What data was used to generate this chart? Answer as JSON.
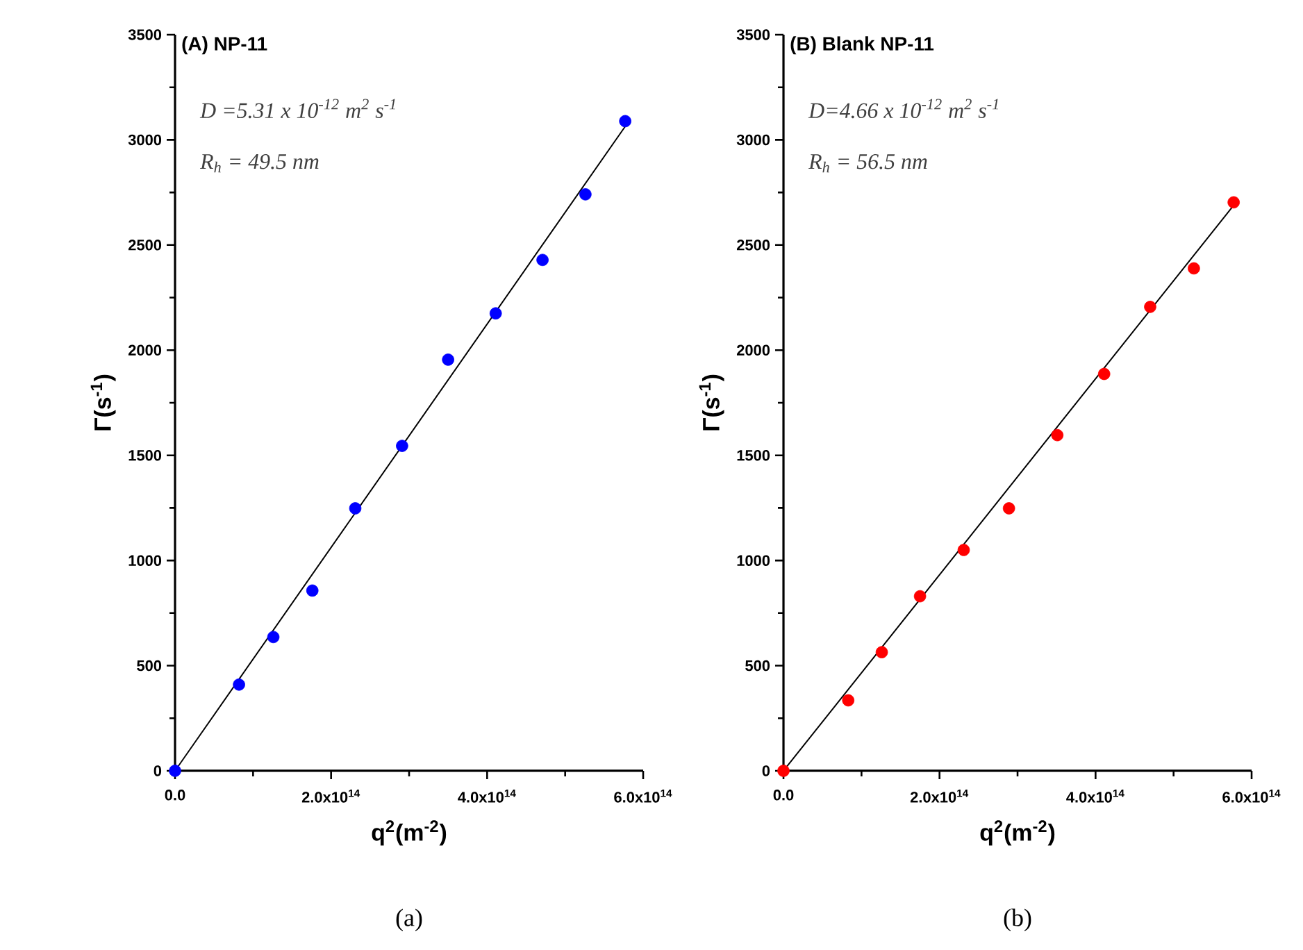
{
  "chart_data": [
    {
      "type": "scatter",
      "title": "(A) NP-11",
      "xlabel": "q$^{2}$(m$^{-2}$)",
      "ylabel": "Γ(s$^{-1}$)",
      "xlim": [
        0,
        600000000000000.0
      ],
      "ylim": [
        0,
        3500
      ],
      "xticks": [
        {
          "value": 0,
          "label": "0.0"
        },
        {
          "value": 200000000000000.0,
          "label": "2.0x10$^{14}$"
        },
        {
          "value": 400000000000000.0,
          "label": "4.0x10$^{14}$"
        },
        {
          "value": 600000000000000.0,
          "label": "6.0x10$^{14}$"
        }
      ],
      "yticks": [
        0,
        500,
        1000,
        1500,
        2000,
        2500,
        3000,
        3500
      ],
      "annotations": [
        "D =5.31 x 10$^{-12}$ m$^{2}$ s$^{-1}$",
        "R$_{h}$ = 49.5 nm",
        "(a)"
      ],
      "series": [
        {
          "marker": "circle",
          "color": "#0000ff",
          "x": [
            0,
            82000000000000.0,
            126000000000000.0,
            176000000000000.0,
            231000000000000.0,
            291000000000000.0,
            350000000000000.0,
            411000000000000.0,
            471000000000000.0,
            526000000000000.0,
            577000000000000.0
          ],
          "values": [
            0,
            410,
            636,
            857,
            1248,
            1545,
            1955,
            2175,
            2429,
            2741,
            3089
          ]
        },
        {
          "type": "line",
          "color": "#000000",
          "x": [
            0,
            577000000000000.0
          ],
          "values": [
            0,
            3064
          ]
        }
      ]
    },
    {
      "type": "scatter",
      "title": "(B) Blank NP-11",
      "xlabel": "q$^{2}$(m$^{-2}$)",
      "ylabel": "Γ(s$^{-1}$)",
      "xlim": [
        0,
        600000000000000.0
      ],
      "ylim": [
        0,
        3500
      ],
      "xticks": [
        {
          "value": 0,
          "label": "0.0"
        },
        {
          "value": 200000000000000.0,
          "label": "2.0x10$^{14}$"
        },
        {
          "value": 400000000000000.0,
          "label": "4.0x10$^{14}$"
        },
        {
          "value": 600000000000000.0,
          "label": "6.0x10$^{14}$"
        }
      ],
      "yticks": [
        0,
        500,
        1000,
        1500,
        2000,
        2500,
        3000,
        3500
      ],
      "annotations": [
        "D=4.66 x 10$^{-12}$ m$^{2}$ s$^{-1}$",
        "R$_{h}$ = 56.5 nm",
        "(b)"
      ],
      "series": [
        {
          "marker": "circle",
          "color": "#ff0000",
          "x": [
            0,
            83000000000000.0,
            126000000000000.0,
            175000000000000.0,
            231000000000000.0,
            289000000000000.0,
            351000000000000.0,
            411000000000000.0,
            470000000000000.0,
            526000000000000.0,
            577000000000000.0
          ],
          "values": [
            0,
            335,
            564,
            830,
            1050,
            1248,
            1596,
            1887,
            2206,
            2389,
            2703
          ]
        },
        {
          "type": "line",
          "color": "#000000",
          "x": [
            0,
            577000000000000.0
          ],
          "values": [
            0,
            2689
          ]
        }
      ]
    }
  ]
}
